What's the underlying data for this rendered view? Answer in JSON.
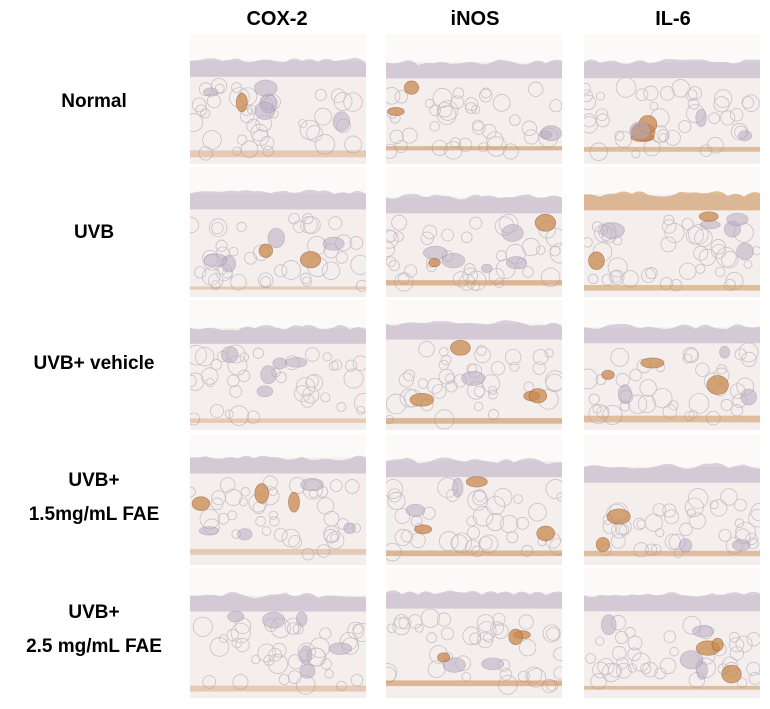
{
  "columns": [
    "COX-2",
    "iNOS",
    "IL-6"
  ],
  "rows": [
    {
      "lines": [
        "Normal"
      ]
    },
    {
      "lines": [
        "UVB"
      ]
    },
    {
      "lines": [
        "UVB+ vehicle"
      ]
    },
    {
      "lines": [
        "UVB+",
        "1.5mg/mL FAE"
      ]
    },
    {
      "lines": [
        "UVB+",
        "2.5 mg/mL FAE"
      ]
    }
  ],
  "colors": {
    "background": "#ffffff",
    "tissue_pink": "#e7d6d6",
    "epidermis_purple": "#b9adc4",
    "stain_brown": "#c98a4f",
    "fat_border": "#c9c0c8"
  }
}
